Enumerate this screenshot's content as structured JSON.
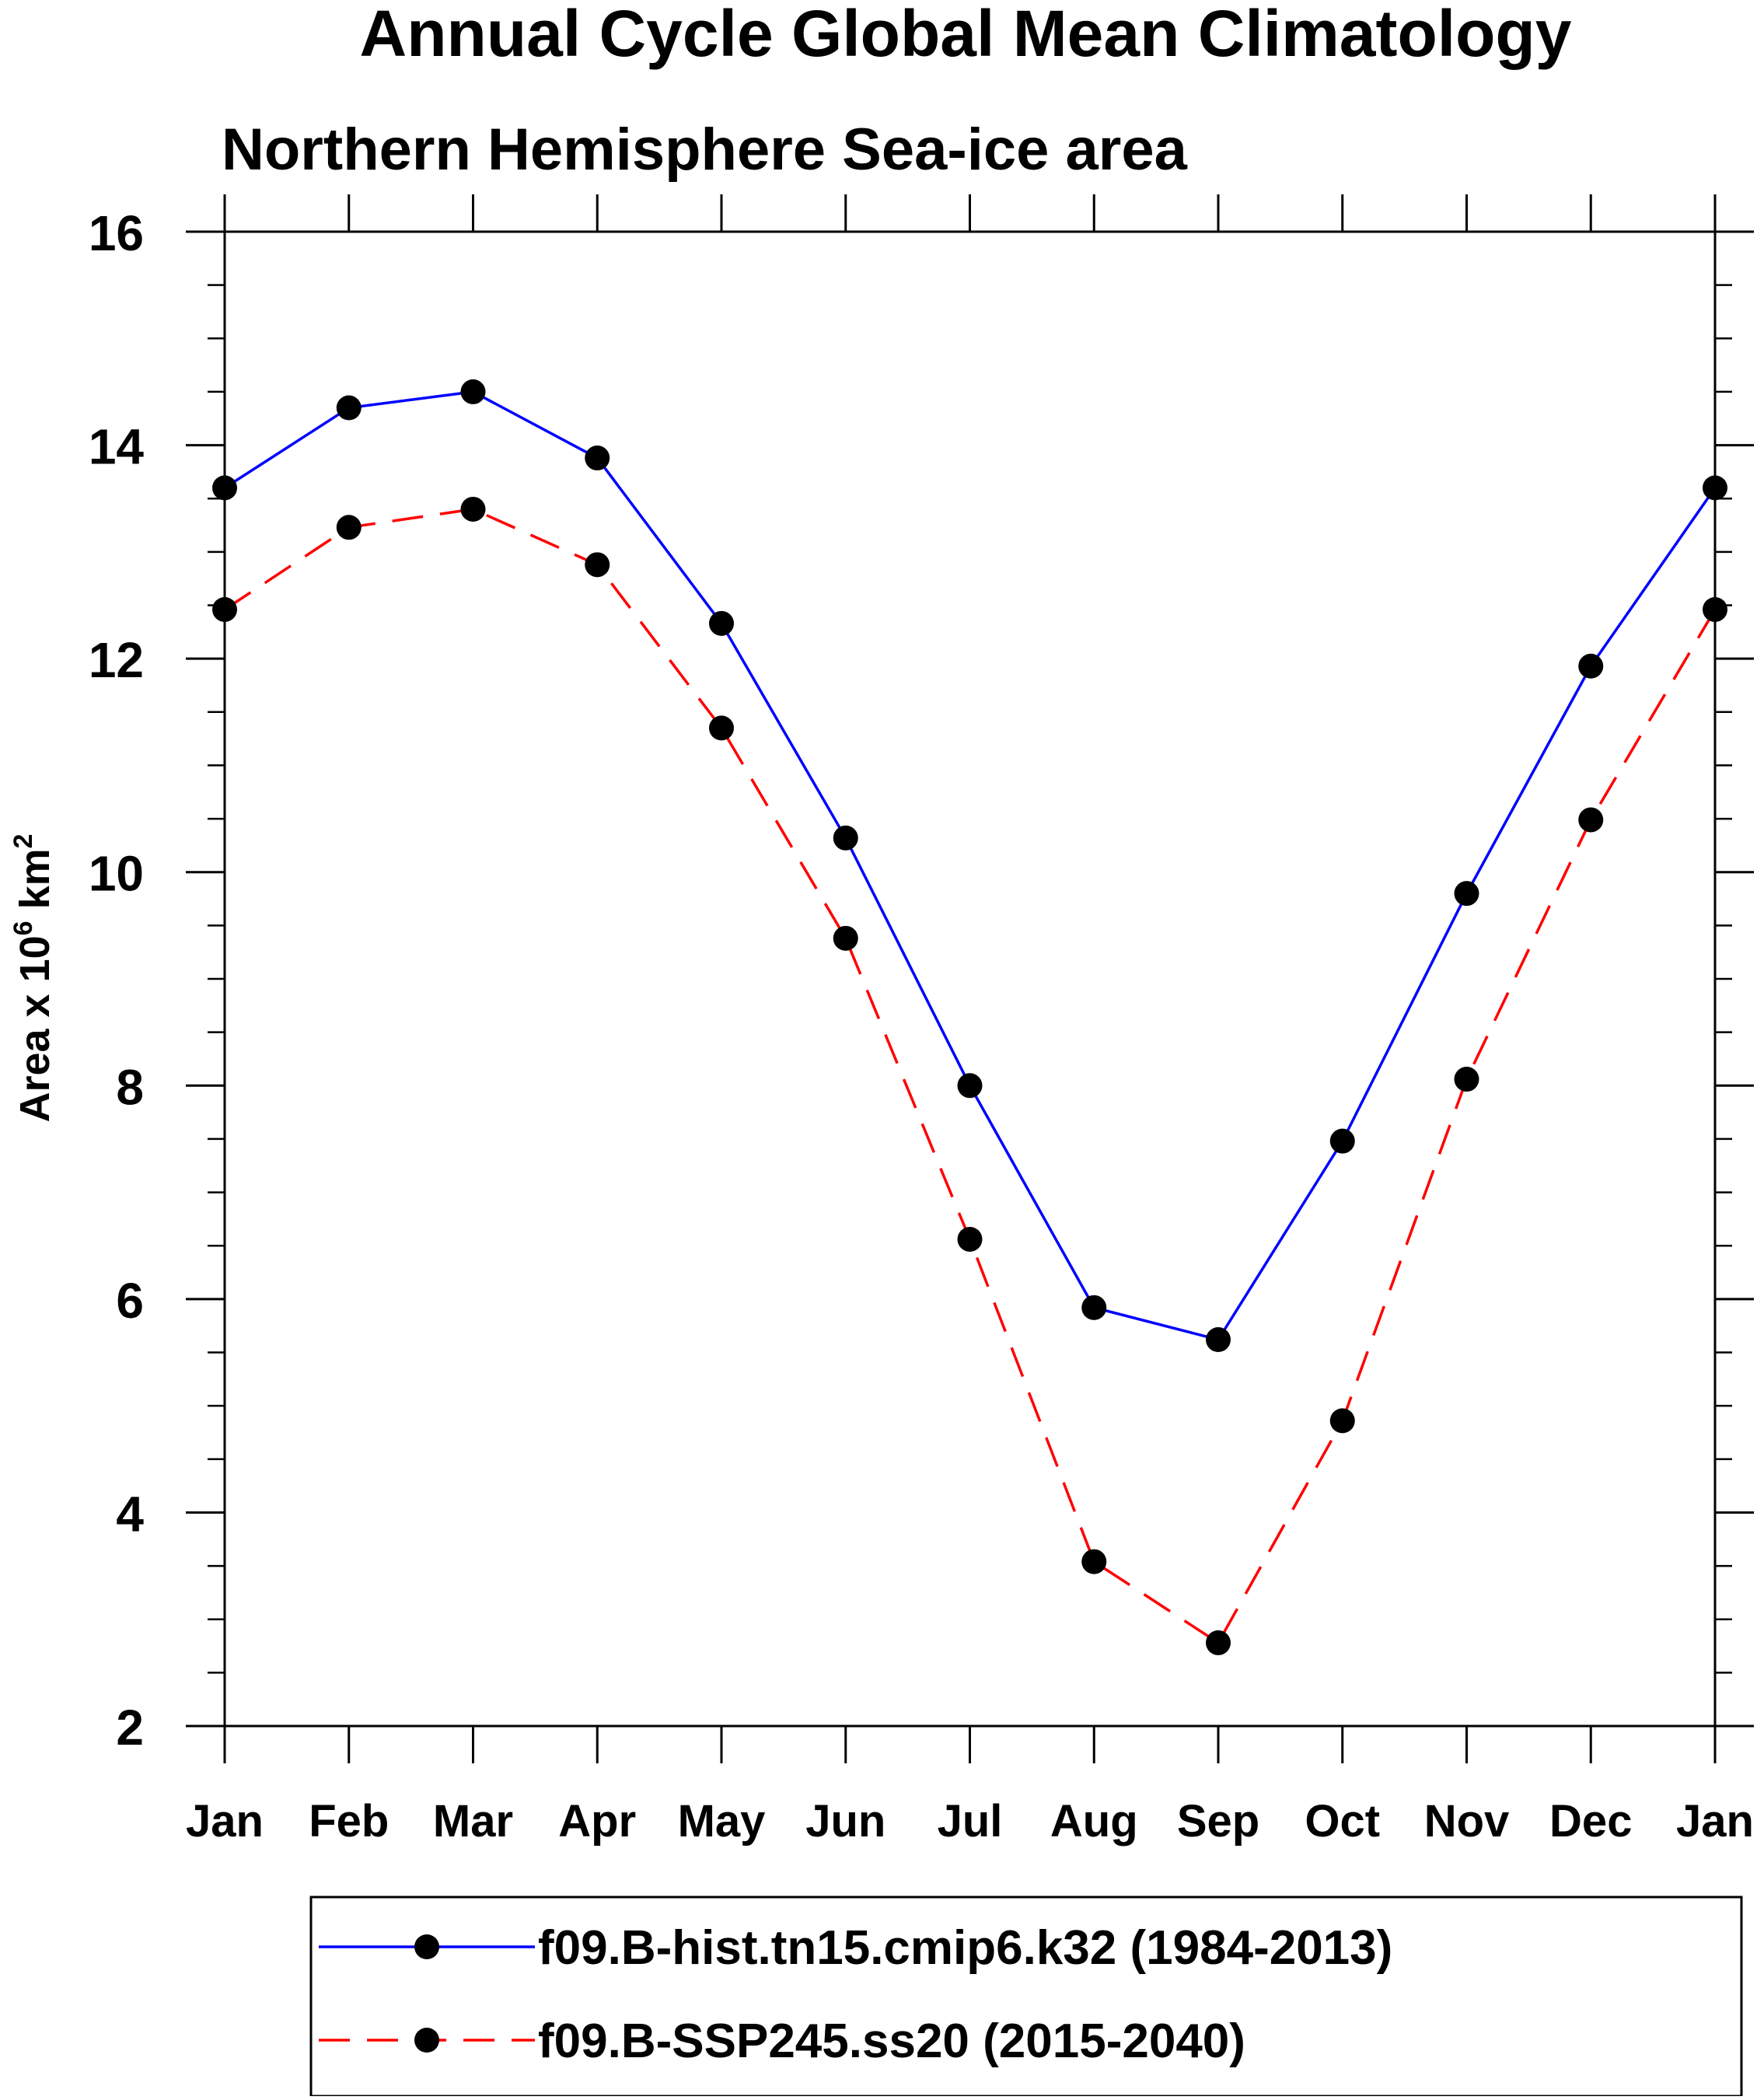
{
  "chart_data": {
    "type": "line",
    "title": "Annual Cycle Global Mean Climatology",
    "subtitle": "Northern Hemisphere Sea-ice area",
    "ylabel_prefix": "Area x 10",
    "ylabel_exp1": "6",
    "ylabel_unit": " km",
    "ylabel_exp2": "2",
    "xlabel": "",
    "categories": [
      "Jan",
      "Feb",
      "Mar",
      "Apr",
      "May",
      "Jun",
      "Jul",
      "Aug",
      "Sep",
      "Oct",
      "Nov",
      "Dec",
      "Jan"
    ],
    "ylim": [
      2,
      16
    ],
    "yticks": [
      2,
      4,
      6,
      8,
      10,
      12,
      14,
      16
    ],
    "yminor_step": 0.5,
    "grid": false,
    "legend_position": "bottom",
    "series": [
      {
        "name": "f09.B-hist.tn15.cmip6.k32 (1984-2013)",
        "color": "#0000ff",
        "line_style": "solid",
        "marker": "filled-circle",
        "values": [
          13.6,
          14.35,
          14.5,
          13.88,
          12.33,
          10.32,
          8.0,
          5.92,
          5.62,
          7.48,
          9.8,
          11.93,
          13.6
        ]
      },
      {
        "name": "f09.B-SSP245.ss20 (2015-2040)",
        "color": "#ff0000",
        "line_style": "dashed",
        "marker": "filled-circle",
        "values": [
          12.46,
          13.23,
          13.4,
          12.88,
          11.35,
          9.38,
          6.56,
          3.54,
          2.78,
          4.86,
          8.06,
          10.49,
          12.46
        ]
      }
    ]
  }
}
